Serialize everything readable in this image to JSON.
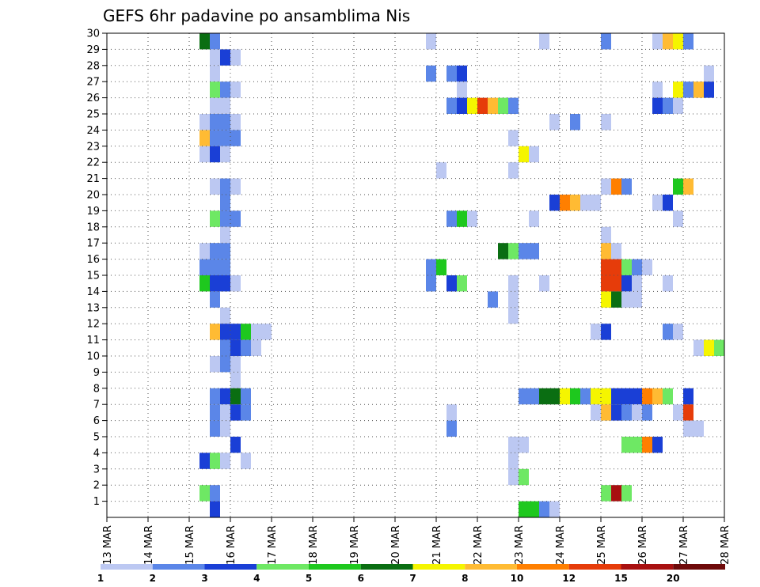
{
  "chart_data": {
    "type": "heatmap",
    "title": "GEFS 6hr padavine po ansamblima Nis",
    "x_tick_labels": [
      "13 MAR",
      "14 MAR",
      "15 MAR",
      "16 MAR",
      "17 MAR",
      "18 MAR",
      "19 MAR",
      "20 MAR",
      "21 MAR",
      "22 MAR",
      "23 MAR",
      "24 MAR",
      "25 MAR",
      "26 MAR",
      "27 MAR",
      "28 MAR"
    ],
    "y_tick_labels": [
      "1",
      "2",
      "3",
      "4",
      "5",
      "6",
      "7",
      "8",
      "9",
      "10",
      "11",
      "12",
      "13",
      "14",
      "15",
      "16",
      "17",
      "18",
      "19",
      "20",
      "21",
      "22",
      "23",
      "24",
      "25",
      "26",
      "27",
      "28",
      "29",
      "30"
    ],
    "xlim": [
      0,
      60
    ],
    "ylim": [
      0,
      30
    ],
    "grid": true,
    "colorbar": {
      "labels": [
        "1",
        "2",
        "3",
        "4",
        "5",
        "6",
        "7",
        "8",
        "10",
        "12",
        "15",
        "20"
      ],
      "colors": [
        "#bcc8f2",
        "#5b86e8",
        "#1a3fd6",
        "#6ee864",
        "#1ec81e",
        "#0a6e12",
        "#f5f500",
        "#ffbb33",
        "#ff7f00",
        "#e63c0a",
        "#a81010",
        "#6e0a0a"
      ]
    },
    "cells": [
      [
        9,
        29.5,
        5
      ],
      [
        10,
        29.5,
        1
      ],
      [
        10,
        28.5,
        0
      ],
      [
        11,
        28.5,
        2
      ],
      [
        12,
        28.5,
        0
      ],
      [
        10,
        27.5,
        0
      ],
      [
        10,
        26.5,
        3
      ],
      [
        11,
        26.5,
        1
      ],
      [
        12,
        26.5,
        0
      ],
      [
        10,
        25.5,
        0
      ],
      [
        11,
        25.5,
        0
      ],
      [
        9,
        24.5,
        0
      ],
      [
        10,
        24.5,
        1
      ],
      [
        11,
        24.5,
        1
      ],
      [
        12,
        24.5,
        0
      ],
      [
        9,
        23.5,
        7
      ],
      [
        10,
        23.5,
        1
      ],
      [
        11,
        23.5,
        1
      ],
      [
        12,
        23.5,
        1
      ],
      [
        9,
        22.5,
        0
      ],
      [
        10,
        22.5,
        2
      ],
      [
        11,
        22.5,
        0
      ],
      [
        10,
        20.5,
        0
      ],
      [
        11,
        20.5,
        1
      ],
      [
        12,
        20.5,
        0
      ],
      [
        11,
        19.5,
        1
      ],
      [
        10,
        18.5,
        3
      ],
      [
        11,
        18.5,
        1
      ],
      [
        12,
        18.5,
        1
      ],
      [
        11,
        17.5,
        0
      ],
      [
        9,
        16.5,
        0
      ],
      [
        10,
        16.5,
        1
      ],
      [
        11,
        16.5,
        1
      ],
      [
        9,
        15.5,
        1
      ],
      [
        10,
        15.5,
        1
      ],
      [
        11,
        15.5,
        1
      ],
      [
        9,
        14.5,
        4
      ],
      [
        10,
        14.5,
        2
      ],
      [
        11,
        14.5,
        2
      ],
      [
        12,
        14.5,
        0
      ],
      [
        10,
        13.5,
        1
      ],
      [
        11,
        12.5,
        0
      ],
      [
        10,
        11.5,
        7
      ],
      [
        11,
        11.5,
        2
      ],
      [
        12,
        11.5,
        2
      ],
      [
        13,
        11.5,
        4
      ],
      [
        14,
        11.5,
        0
      ],
      [
        15,
        11.5,
        0
      ],
      [
        11,
        10.5,
        1
      ],
      [
        12,
        10.5,
        2
      ],
      [
        13,
        10.5,
        1
      ],
      [
        14,
        10.5,
        0
      ],
      [
        10,
        9.5,
        0
      ],
      [
        11,
        9.5,
        1
      ],
      [
        12,
        9.5,
        0
      ],
      [
        12,
        8.5,
        0
      ],
      [
        10,
        7.5,
        1
      ],
      [
        11,
        7.5,
        2
      ],
      [
        12,
        7.5,
        5
      ],
      [
        13,
        7.5,
        1
      ],
      [
        10,
        6.5,
        1
      ],
      [
        11,
        6.5,
        0
      ],
      [
        12,
        6.5,
        2
      ],
      [
        13,
        6.5,
        1
      ],
      [
        10,
        5.5,
        1
      ],
      [
        11,
        5.5,
        0
      ],
      [
        12,
        4.5,
        2
      ],
      [
        9,
        3.5,
        2
      ],
      [
        10,
        3.5,
        3
      ],
      [
        11,
        3.5,
        0
      ],
      [
        13,
        3.5,
        0
      ],
      [
        9,
        1.5,
        3
      ],
      [
        10,
        1.5,
        1
      ],
      [
        10,
        0.5,
        2
      ],
      [
        31,
        29.5,
        0
      ],
      [
        31,
        27.5,
        1
      ],
      [
        33,
        27.5,
        1
      ],
      [
        34,
        27.5,
        2
      ],
      [
        34,
        26.5,
        0
      ],
      [
        33,
        25.5,
        1
      ],
      [
        34,
        25.5,
        2
      ],
      [
        35,
        25.5,
        6
      ],
      [
        36,
        25.5,
        9
      ],
      [
        37,
        25.5,
        7
      ],
      [
        38,
        25.5,
        3
      ],
      [
        39,
        25.5,
        1
      ],
      [
        32,
        21.5,
        0
      ],
      [
        39,
        21.5,
        0
      ],
      [
        39,
        23.5,
        0
      ],
      [
        40,
        22.5,
        6
      ],
      [
        41,
        22.5,
        0
      ],
      [
        33,
        18.5,
        1
      ],
      [
        34,
        18.5,
        4
      ],
      [
        35,
        18.5,
        0
      ],
      [
        41,
        18.5,
        0
      ],
      [
        38,
        16.5,
        5
      ],
      [
        39,
        16.5,
        3
      ],
      [
        40,
        16.5,
        1
      ],
      [
        41,
        16.5,
        1
      ],
      [
        31,
        15.5,
        1
      ],
      [
        32,
        15.5,
        4
      ],
      [
        31,
        14.5,
        1
      ],
      [
        33,
        14.5,
        2
      ],
      [
        34,
        14.5,
        3
      ],
      [
        39,
        14.5,
        0
      ],
      [
        42,
        14.5,
        0
      ],
      [
        37,
        13.5,
        1
      ],
      [
        39,
        13.5,
        0
      ],
      [
        39,
        12.5,
        0
      ],
      [
        33,
        6.5,
        0
      ],
      [
        33,
        5.5,
        1
      ],
      [
        39,
        4.5,
        0
      ],
      [
        40,
        4.5,
        0
      ],
      [
        39,
        3.5,
        0
      ],
      [
        39,
        2.5,
        0
      ],
      [
        40,
        2.5,
        3
      ],
      [
        40,
        7.5,
        1
      ],
      [
        41,
        7.5,
        1
      ],
      [
        42,
        7.5,
        5
      ],
      [
        43,
        7.5,
        5
      ],
      [
        44,
        7.5,
        6
      ],
      [
        45,
        7.5,
        4
      ],
      [
        46,
        7.5,
        1
      ],
      [
        40,
        0.5,
        4
      ],
      [
        41,
        0.5,
        4
      ],
      [
        42,
        0.5,
        1
      ],
      [
        43,
        0.5,
        0
      ],
      [
        42,
        29.5,
        0
      ],
      [
        43,
        24.5,
        0
      ],
      [
        45,
        24.5,
        1
      ],
      [
        43,
        19.5,
        2
      ],
      [
        44,
        19.5,
        8
      ],
      [
        45,
        19.5,
        7
      ],
      [
        46,
        19.5,
        0
      ],
      [
        47,
        19.5,
        0
      ],
      [
        47,
        11.5,
        0
      ],
      [
        48,
        11.5,
        2
      ],
      [
        48,
        29.5,
        1
      ],
      [
        48,
        24.5,
        0
      ],
      [
        48,
        20.5,
        0
      ],
      [
        49,
        20.5,
        8
      ],
      [
        50,
        20.5,
        1
      ],
      [
        48,
        17.5,
        0
      ],
      [
        48,
        16.5,
        7
      ],
      [
        49,
        16.5,
        0
      ],
      [
        48,
        15.5,
        9
      ],
      [
        49,
        15.5,
        9
      ],
      [
        50,
        15.5,
        3
      ],
      [
        51,
        15.5,
        1
      ],
      [
        52,
        15.5,
        0
      ],
      [
        48,
        14.5,
        9
      ],
      [
        49,
        14.5,
        9
      ],
      [
        50,
        14.5,
        2
      ],
      [
        51,
        14.5,
        0
      ],
      [
        48,
        13.5,
        6
      ],
      [
        49,
        13.5,
        5
      ],
      [
        50,
        13.5,
        0
      ],
      [
        51,
        13.5,
        0
      ],
      [
        47,
        7.5,
        6
      ],
      [
        48,
        7.5,
        6
      ],
      [
        49,
        7.5,
        2
      ],
      [
        50,
        7.5,
        2
      ],
      [
        51,
        7.5,
        2
      ],
      [
        52,
        7.5,
        8
      ],
      [
        53,
        7.5,
        7
      ],
      [
        54,
        7.5,
        3
      ],
      [
        47,
        6.5,
        0
      ],
      [
        48,
        6.5,
        7
      ],
      [
        49,
        6.5,
        2
      ],
      [
        50,
        6.5,
        1
      ],
      [
        51,
        6.5,
        0
      ],
      [
        52,
        6.5,
        1
      ],
      [
        50,
        4.5,
        3
      ],
      [
        51,
        4.5,
        3
      ],
      [
        52,
        4.5,
        8
      ],
      [
        53,
        4.5,
        2
      ],
      [
        48,
        1.5,
        3
      ],
      [
        49,
        1.5,
        10
      ],
      [
        50,
        1.5,
        3
      ],
      [
        53,
        29.5,
        0
      ],
      [
        54,
        29.5,
        7
      ],
      [
        55,
        29.5,
        6
      ],
      [
        56,
        29.5,
        1
      ],
      [
        58,
        27.5,
        0
      ],
      [
        53,
        26.5,
        0
      ],
      [
        55,
        26.5,
        6
      ],
      [
        56,
        26.5,
        1
      ],
      [
        57,
        26.5,
        7
      ],
      [
        58,
        26.5,
        2
      ],
      [
        53,
        25.5,
        2
      ],
      [
        54,
        25.5,
        1
      ],
      [
        55,
        25.5,
        0
      ],
      [
        53,
        19.5,
        0
      ],
      [
        54,
        19.5,
        2
      ],
      [
        55,
        20.5,
        4
      ],
      [
        56,
        20.5,
        7
      ],
      [
        55,
        18.5,
        0
      ],
      [
        54,
        14.5,
        0
      ],
      [
        55,
        11.5,
        0
      ],
      [
        54,
        11.5,
        1
      ],
      [
        57,
        10.5,
        0
      ],
      [
        58,
        10.5,
        6
      ],
      [
        59,
        10.5,
        3
      ],
      [
        56,
        7.5,
        2
      ],
      [
        55,
        6.5,
        0
      ],
      [
        56,
        6.5,
        9
      ],
      [
        56,
        5.5,
        0
      ],
      [
        57,
        5.5,
        0
      ]
    ]
  }
}
